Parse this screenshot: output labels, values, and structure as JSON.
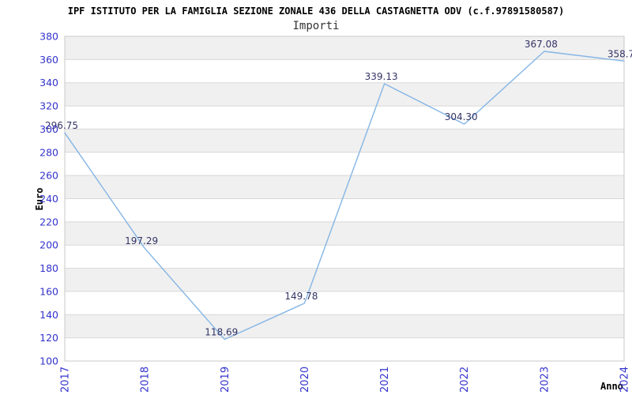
{
  "header": {
    "title": "IPF ISTITUTO PER LA FAMIGLIA SEZIONE ZONALE 436 DELLA CASTAGNETTA ODV (c.f.97891580587)",
    "subtitle": "Importi"
  },
  "axes": {
    "y_label": "Euro",
    "x_label": "Anno"
  },
  "chart_data": {
    "type": "line",
    "title": "IPF ISTITUTO PER LA FAMIGLIA SEZIONE ZONALE 436 DELLA CASTAGNETTA ODV (c.f.97891580587)",
    "subtitle": "Importi",
    "xlabel": "Anno",
    "ylabel": "Euro",
    "categories": [
      "2017",
      "2018",
      "2019",
      "2020",
      "2021",
      "2022",
      "2023",
      "2024"
    ],
    "series": [
      {
        "name": "Importi",
        "values": [
          296.75,
          197.29,
          118.69,
          149.78,
          339.13,
          304.3,
          367.08,
          358.7
        ]
      }
    ],
    "point_labels": [
      "296.75",
      "197.29",
      "118.69",
      "149.78",
      "339.13",
      "304.30",
      "367.08",
      "358.7"
    ],
    "ylim": [
      100,
      380
    ],
    "ytick_step": 20,
    "yticks": [
      100,
      120,
      140,
      160,
      180,
      200,
      220,
      240,
      260,
      280,
      300,
      320,
      340,
      360,
      380
    ],
    "grid": "horizontal-bands",
    "legend_position": "none",
    "colors": {
      "line": "#85b5e5",
      "tick_label": "#3333cc",
      "point_label": "#333366",
      "band": "#f0f0f0",
      "band_alt": "#ffffff",
      "gridline": "#d8d8d8",
      "border": "#c8c8c8",
      "title": "#000000",
      "subtitle": "#333333"
    }
  }
}
